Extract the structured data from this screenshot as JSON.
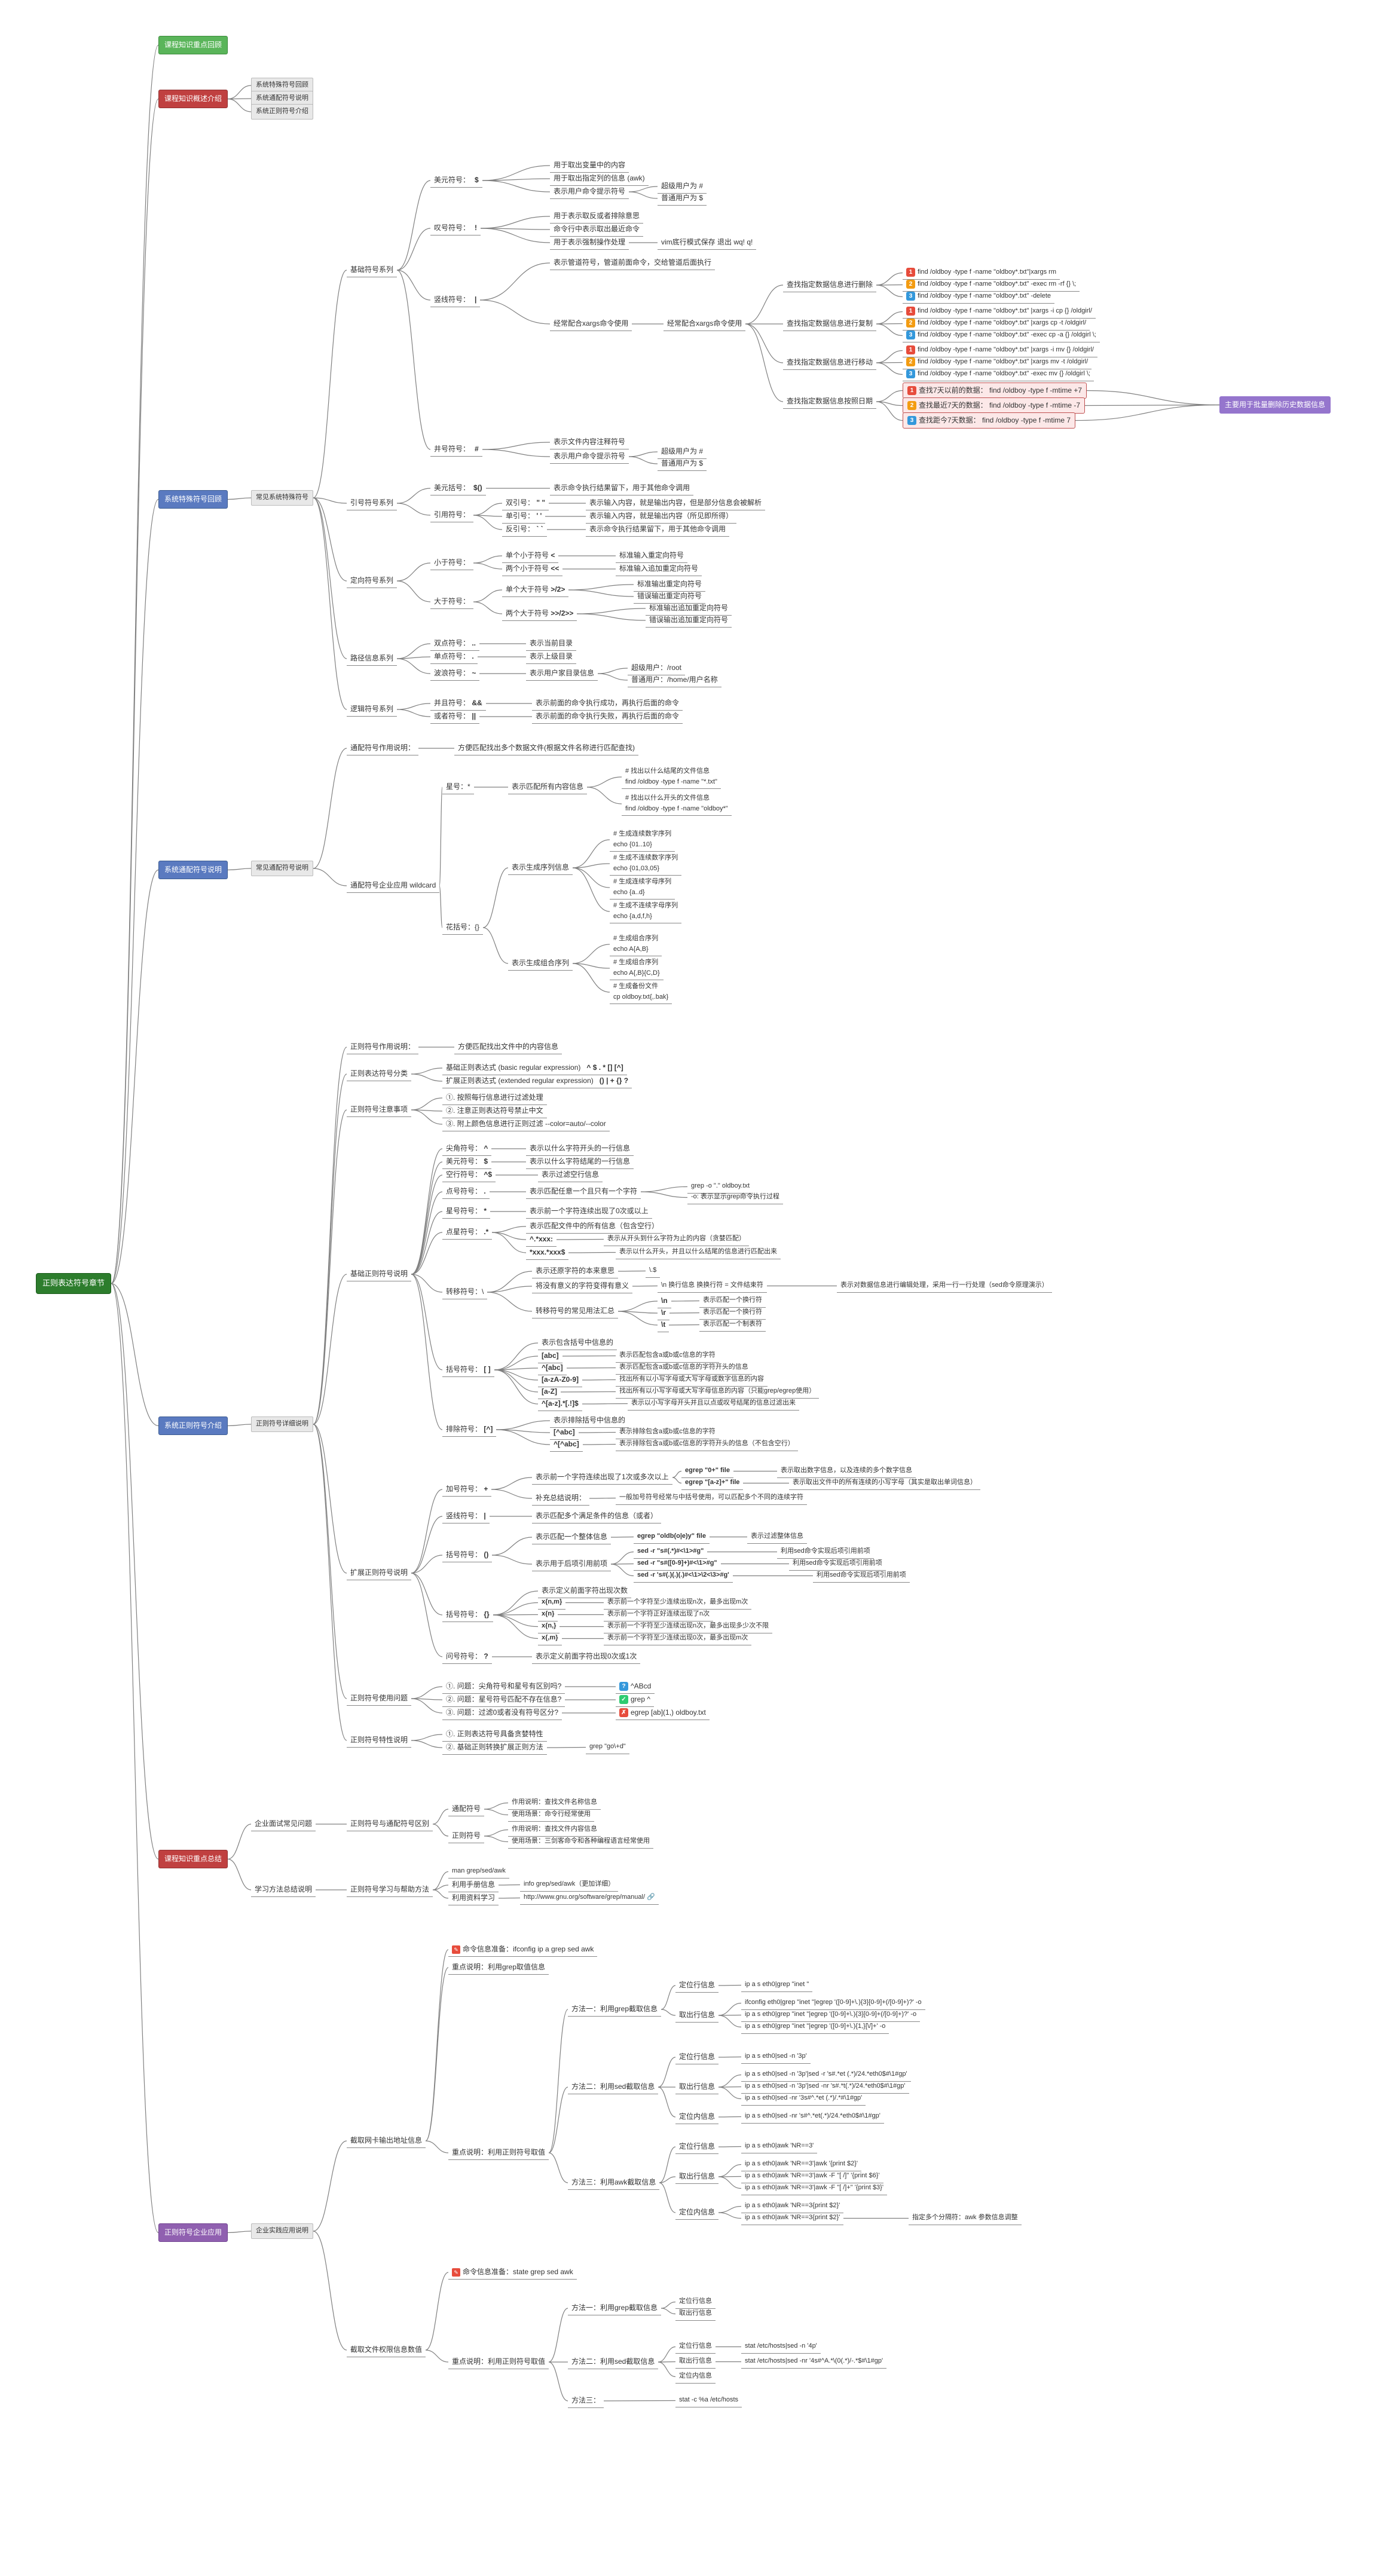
{
  "colors": {
    "connector": "#808080",
    "root_bg": "#2d7d2d",
    "green_bg": "#5ab55a",
    "red_bg": "#c04040",
    "blue_bg": "#5a7ac0",
    "purple_bg": "#9060b0",
    "gray_bg": "#e8e8e8"
  },
  "root": "正则表达符号章节",
  "n01": "课程知识重点回顾",
  "n02": "课程知识概述介绍",
  "n02a": "系统特殊符号回顾",
  "n02b": "系统通配符号说明",
  "n02c": "系统正则符号介绍",
  "n03": "系统特殊符号回顾",
  "n03a": "常见系统特殊符号",
  "b1": "基础符号系列",
  "b1a": "美元符号：",
  "b1a_sym": "$",
  "b1a1": "用于取出变量中的内容",
  "b1a2": "用于取出指定列的信息 (awk)",
  "b1a3": "表示用户命令提示符号",
  "b1a3a": "超级用户为 #",
  "b1a3b": "普通用户为 $",
  "b1b": "叹号符号：",
  "b1b_sym": "!",
  "b1b1": "用于表示取反或者排除意思",
  "b1b2": "命令行中表示取出最近命令",
  "b1b3": "用于表示强制操作处理",
  "b1b3a": "vim底行模式保存 退出 wq! q!",
  "b1c": "竖线符号：",
  "b1c_sym": "|",
  "b1c1": "表示管道符号，管道前面命令，交给管道后面执行",
  "b1d": "经常配合xargs命令使用",
  "b1d_x": "经常配合xargs命令使用",
  "b1d1": "查找指定数据信息进行删除",
  "b1d1a": "find /oldboy -type f -name \"oldboy*.txt\"|xargs rm",
  "b1d1b": "find /oldboy -type f -name \"oldboy*.txt\" -exec rm -rf {} \\;",
  "b1d1c": "find /oldboy -type f -name \"oldboy*.txt\" -delete",
  "b1d2": "查找指定数据信息进行复制",
  "b1d2a": "find /oldboy -type f -name \"oldboy*.txt\" |xargs -i cp {} /oldgirl/",
  "b1d2b": "find /oldboy -type f -name \"oldboy*.txt\" |xargs cp -t /oldgirl/",
  "b1d2c": "find /oldboy -type f -name \"oldboy*.txt\" -exec cp -a {} /oldgirl \\;",
  "b1d3": "查找指定数据信息进行移动",
  "b1d3a": "find /oldboy -type f -name \"oldboy*.txt\" |xargs -i mv {} /oldgirl/",
  "b1d3b": "find /oldboy -type f -name \"oldboy*.txt\" |xargs mv -t /oldgirl/",
  "b1d3c": "find /oldboy -type f -name \"oldboy*.txt\" -exec mv {} /oldgirl \\;",
  "b1d4": "查找指定数据信息按照日期",
  "b1d4a": "查找7天以前的数据： find /oldboy -type f -mtime +7",
  "b1d4b": "查找最近7天的数据： find /oldboy -type f -mtime -7",
  "b1d4c": "查找距今7天数据：   find /oldboy -type f -mtime 7",
  "b1d4note": "主要用于批量删除历史数据信息",
  "b1e": "井号符号：",
  "b1e_sym": "#",
  "b1e1": "表示文件内容注释符号",
  "b1e2": "表示用户命令提示符号",
  "b1e2a": "超级用户为 #",
  "b1e2b": "普通用户为 $",
  "q1": "引号符号系列",
  "q1a": "美元括号：",
  "q1a_sym": "$()",
  "q1a1": "表示命令执行结果留下，用于其他命令调用",
  "q1b": "引用符号：",
  "q1b1": "双引号：",
  "q1b1_sym": "\" \"",
  "q1b1d": "表示输入内容，就是输出内容，但是部分信息会被解析",
  "q1b2": "单引号：",
  "q1b2_sym": "' '",
  "q1b2d": "表示输入内容，就是输出内容（所见即所得）",
  "q1b3": "反引号：",
  "q1b3_sym": "` `",
  "q1b3d": "表示命令执行结果留下，用于其他命令调用",
  "d1": "定向符号系列",
  "d1a": "小于符号：",
  "d1a1": "单个小于符号",
  "d1a1_sym": "<",
  "d1a1d": "标准输入重定向符号",
  "d1a2": "两个小于符号",
  "d1a2_sym": "<<",
  "d1a2d": "标准输入追加重定向符号",
  "d1b": "大于符号：",
  "d1b1": "单个大于符号",
  "d1b1_sym": ">/2>",
  "d1b1d1": "标准输出重定向符号",
  "d1b1d2": "错误输出重定向符号",
  "d1b2": "两个大于符号",
  "d1b2_sym": ">>/2>>",
  "d1b2d1": "标准输出追加重定向符号",
  "d1b2d2": "错误输出追加重定向符号",
  "p1": "路径信息系列",
  "p1a": "双点符号：",
  "p1a_sym": "..",
  "p1a1": "表示当前目录",
  "p1b": "单点符号：",
  "p1b_sym": ".",
  "p1b1": "表示上级目录",
  "p1c": "波浪符号：",
  "p1c_sym": "~",
  "p1c1": "表示用户家目录信息",
  "p1c1a": "超级用户：/root",
  "p1c1b": "普通用户：/home/用户名称",
  "l1": "逻辑符号系列",
  "l1a": "并且符号：",
  "l1a_sym": "&&",
  "l1a1": "表示前面的命令执行成功，再执行后面的命令",
  "l1b": "或者符号：",
  "l1b_sym": "||",
  "l1b1": "表示前面的命令执行失败，再执行后面的命令",
  "w0": "系统通配符号说明",
  "w0a": "常见通配符号说明",
  "w1": "通配符号作用说明：",
  "w1a": "方便匹配找出多个数据文件(根据文件名称进行匹配查找)",
  "w2": "通配符号企业应用 wildcard",
  "w3": "星号：*",
  "w3a": "表示匹配所有内容信息",
  "w3a1": "# 找出以什么结尾的文件信息\nfind /oldboy -type f -name \"*.txt\"",
  "w3a2": "# 找出以什么开头的文件信息\nfind /oldboy -type f -name \"oldboy*\"",
  "w4": "花括号：{}",
  "w4a": "表示生成序列信息",
  "w4a1": "# 生成连续数字序列\necho {01..10}",
  "w4a2": "# 生成不连续数字序列\necho {01,03,05}",
  "w4a3": "# 生成连续字母序列\necho {a..d}",
  "w4a4": "# 生成不连续字母序列\necho {a,d,f,h}",
  "w4b": "表示生成组合序列",
  "w4b1": "# 生成组合序列\necho A{A,B}",
  "w4b2": "# 生成组合序列\necho A{,B}{C,D}",
  "w4b3": "# 生成备份文件\ncp oldboy.txt{,.bak}",
  "r0": "系统正则符号介绍",
  "r0a": "正则符号详细说明",
  "r1": "正则符号作用说明：",
  "r1a": "方便匹配找出文件中的内容信息",
  "r2": "正则表达符号分类",
  "r2a": "基础正则表达式 (basic regular expression)",
  "r2a_sym": "^ $ . * [] [^]",
  "r2b": "扩展正则表达式 (extended regular expression)",
  "r2b_sym": "() | + {} ?",
  "r3": "正则符号注意事项",
  "r3a": "①. 按照每行信息进行过滤处理",
  "r3b": "②. 注意正则表达符号禁止中文",
  "r3c": "③. 附上颜色信息进行正则过滤    --color=auto/--color",
  "rb": "基础正则符号说明",
  "rb1": "尖角符号：",
  "rb1_sym": "^",
  "rb1d": "表示以什么字符开头的一行信息",
  "rb2": "美元符号：",
  "rb2_sym": "$",
  "rb2d": "表示以什么字符结尾的一行信息",
  "rb3": "空行符号：",
  "rb3_sym": "^$",
  "rb3d": "表示过滤空行信息",
  "rb4": "点号符号：",
  "rb4_sym": ".",
  "rb4d": "表示匹配任意一个且只有一个字符",
  "rb4e": "grep -o \".\" oldboy.txt",
  "rb4f": "-o: 表示显示grep命令执行过程",
  "rb5": "星号符号：",
  "rb5_sym": "*",
  "rb5d": "表示前一个字符连续出现了0次或以上",
  "rb6": "点星符号：",
  "rb6_sym": ".*",
  "rb6d": "表示匹配文件中的所有信息（包含空行）",
  "rb6e": "^.*xxx:",
  "rb6e_d": "表示从开头到什么字符为止的内容（贪婪匹配）",
  "rb6f": "*xxx.*xxx$",
  "rb6f_d": "表示以什么开头，并且以什么结尾的信息进行匹配出来",
  "rb7": "转移符号：\\",
  "rb7a": "表示还原字符的本来意思",
  "rb7a_e": "\\.$",
  "rb7b": "将没有意义的字符变得有意义",
  "rb7b_e": "\\n  换行信息  换换行符 = 文件结束符",
  "rb7b_d": "表示对数据信息进行编辑处理，采用一行一行处理（sed命令原理演示）",
  "rb7c": "转移符号的常见用法汇总",
  "rb7c1": "\\n",
  "rb7c1_d": "表示匹配一个换行符",
  "rb7c2": "\\r",
  "rb7c2_d": "表示匹配一个换行符",
  "rb7c3": "\\t",
  "rb7c3_d": "表示匹配一个制表符",
  "rb8": "括号符号：",
  "rb8_sym": "[ ]",
  "rb8d": "表示包含括号中信息的",
  "rb8a": "[abc]",
  "rb8a_d": "表示匹配包含a或b或c信息的字符",
  "rb8b": "^[abc]",
  "rb8b_d": "表示匹配包含a或b或c信息的字符开头的信息",
  "rb8c": "[a-zA-Z0-9]",
  "rb8c_d": "找出所有以小写字母或大写字母或数字信息的内容",
  "rb8d2": "[a-Z]",
  "rb8d2_d": "找出所有以小写字母或大写字母信息的内容（只能grep/egrep使用）",
  "rb8e": "^[a-z].*[.!]$",
  "rb8e_d": "表示以小写字母开头并且以点或叹号结尾的信息过滤出来",
  "rb9": "排除符号：",
  "rb9_sym": "[^]",
  "rb9d": "表示排除括号中信息的",
  "rb9a": "[^abc]",
  "rb9a_d": "表示排除包含a或b或c信息的字符",
  "rb9b": "^[^abc]",
  "rb9b_d": "表示排除包含a或b或c信息的字符开头的信息（不包含空行）",
  "re": "扩展正则符号说明",
  "re1": "加号符号：",
  "re1_sym": "+",
  "re1a": "表示前一个字符连续出现了1次或多次以上",
  "re1a1": "egrep \"0+\" file",
  "re1a1_d": "表示取出数字信息，以及连续的多个数字信息",
  "re1a2": "egrep \"[a-z]+\" file",
  "re1a2_d": "表示取出文件中的所有连续的小写字母（其实是取出单词信息）",
  "re1b": "补充总结说明：",
  "re1b_d": "一般加号符号经常与中括号使用，可以匹配多个不同的连续字符",
  "re2": "竖线符号：",
  "re2_sym": "|",
  "re2d": "表示匹配多个满足条件的信息（或者）",
  "re3": "括号符号：",
  "re3_sym": "()",
  "re3a": "表示匹配一个整体信息",
  "re3a_e": "egrep \"oldb(o|e)y\" file",
  "re3a_d": "表示过滤整体信息",
  "re3b": "表示用于后项引用前项",
  "re3b1": "sed -r \"s#(.*)#<\\1>#g\"",
  "re3b1_d": "利用sed命令实现后项引用前项",
  "re3b2": "sed -r \"s#([0-9]+)#<\\1>#g\"",
  "re3b2_d": "利用sed命令实现后项引用前项",
  "re3b3": "sed -r 's#(.)(.)(.)#<\\1>\\2<\\3>#g'",
  "re3b3_d": "利用sed命令实现后项引用前项",
  "re4": "括号符号：",
  "re4_sym": "{}",
  "re4d": "表示定义前面字符出现次数",
  "re4a": "x{n,m}",
  "re4a_d": "表示前一个字符至少连续出现n次，最多出现m次",
  "re4b": "x{n}",
  "re4b_d": "表示前一个字符正好连续出现了n次",
  "re4c": "x{n,}",
  "re4c_d": "表示前一个字符至少连续出现n次，最多出现多少次不限",
  "re4d2": "x{,m}",
  "re4d2_d": "表示前一个字符至少连续出现0次，最多出现m次",
  "re5": "问号符号：",
  "re5_sym": "?",
  "re5d": "表示定义前面字符出现0次或1次",
  "rq": "正则符号使用问题",
  "rq1": "①. 问题：尖角符号和星号有区别吗?",
  "rq1_a": "^ABcd",
  "rq2": "②. 问题：星号符号匹配不存在信息?",
  "rq2_a": "grep ^",
  "rq3": "③. 问题：过滤0或者没有符号区分?",
  "rq3_a": "egrep [ab](1,) oldboy.txt",
  "rx": "正则符号特性说明",
  "rx1": "①. 正则表达符号具备贪婪特性",
  "rx2": "②. 基础正则转换扩展正则方法",
  "rx2_e": "grep \"go\\+d\"",
  "s0": "课程知识重点总结",
  "s1": "企业面试常见问题",
  "s1a": "正则符号与通配符号区别",
  "s1a1": "通配符号",
  "s1a1a": "作用说明：查找文件名称信息",
  "s1a1b": "使用场景：命令行经常使用",
  "s1a2": "正则符号",
  "s1a2a": "作用说明：查找文件内容信息",
  "s1a2b": "使用场景：三剑客命令和各种编程语言经常使用",
  "s2": "学习方法总结说明",
  "s2a": "正则符号学习与帮助方法",
  "s2a1": "man grep/sed/awk",
  "s2a2": "利用手册信息",
  "s2a2_d": "info grep/sed/awk（更加详细）",
  "s2a3": "利用资料学习",
  "s2a3_d": "http://www.gnu.org/software/grep/manual/",
  "e0": "正则符号企业应用",
  "e0a": "企业实践应用说明",
  "e1": "截取网卡输出地址信息",
  "e1note": "命令信息准备：ifconfig ip a grep sed awk",
  "e1a": "重点说明：利用grep取值信息",
  "e1b": "重点说明：利用正则符号取值",
  "e1m1": "方法一：利用grep截取信息",
  "e1m1a": "定位行信息",
  "e1m1a_v": "ip a s eth0|grep \"inet \"",
  "e1m1b": "取出行信息",
  "e1m1b1": "ifconfig eth0|grep \"inet \"|egrep '([0-9]+\\.){3}[0-9]+(/[0-9]+)?' -o",
  "e1m1b2": "ip a s eth0|grep \"inet \"|egrep '([0-9]+\\.){3}[0-9]+(/[0-9]+)?' -o",
  "e1m1b3": "ip a s eth0|grep \"inet \"|egrep '([0-9]+\\.){1,}[\\/]+' -o",
  "e1m2": "方法二：利用sed截取信息",
  "e1m2a": "定位行信息",
  "e1m2a_v": "ip a s eth0|sed -n '3p'",
  "e1m2b": "取出行信息",
  "e1m2b1": "ip a s eth0|sed -n '3p'|sed -r 's#.*et (.*)/24.*eth0$#\\1#gp'",
  "e1m2b2": "ip a s eth0|sed -n '3p'|sed -nr 's#.*t(.*)/24.*eth0$#\\1#gp'",
  "e1m2b3": "ip a s eth0|sed -nr '3s#^.*et (.*)/.*#\\1#gp'",
  "e1m2c": "定位内信息",
  "e1m2c_v": "ip a s eth0|sed -nr 's#^.*et(.*)/24.*eth0$#\\1#gp'",
  "e1m3": "方法三：利用awk截取信息",
  "e1m3a": "定位行信息",
  "e1m3a_v": "ip a s eth0|awk 'NR==3'",
  "e1m3b": "取出行信息",
  "e1m3b1": "ip a s eth0|awk 'NR==3'|awk '{print $2}'",
  "e1m3b2": "ip a s eth0|awk 'NR==3'|awk -F \"[ /]\" '{print $6}'",
  "e1m3b3": "ip a s eth0|awk 'NR==3'|awk -F \"[ /]+\" '{print $3}'",
  "e1m3c": "定位内信息",
  "e1m3c_v1": "ip a s eth0|awk 'NR==3{print $2}'",
  "e1m3c_v2": "ip a s eth0|awk 'NR==3{print $2}'",
  "e1m3c_note": "指定多个分隔符：awk 参数信息调整",
  "e2": "截取文件权限信息数值",
  "e2note": "命令信息准备：state grep sed awk",
  "e2a": "重点说明：利用正则符号取值",
  "e2m1": "方法一：利用grep截取信息",
  "e2m1a": "定位行信息",
  "e2m1b": "取出行信息",
  "e2m2": "方法二：利用sed截取信息",
  "e2m2a": "定位行信息",
  "e2m2a_v": "stat /etc/hosts|sed -n '4p'",
  "e2m2b": "取出行信息",
  "e2m2b_v": "stat /etc/hosts|sed -nr '4s#^A.*\\(0(.*)/-.*$#\\1#gp'",
  "e2m2c": "定位内信息",
  "e2m3": "方法三：",
  "e2m3_v": "stat -c %a /etc/hosts"
}
